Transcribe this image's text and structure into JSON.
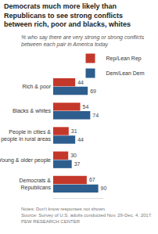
{
  "chart_data": {
    "type": "bar",
    "orientation": "horizontal",
    "title": "Democrats much more likely than Republicans to see strong conflicts between rich, poor and blacks, whites",
    "subtitle": "% who say there are very strong or strong conflicts between each pair in America today",
    "categories": [
      "Rich & poor",
      "Blacks & whites",
      "People in cities & people in rural areas",
      "Young & older people",
      "Democrats & Republicans"
    ],
    "series": [
      {
        "name": "Rep/Lean Rep",
        "color": "#c4382b",
        "values": [
          44,
          54,
          31,
          30,
          67
        ]
      },
      {
        "name": "Dem/Lean Dem",
        "color": "#2e5e8e",
        "values": [
          69,
          74,
          44,
          37,
          90
        ]
      }
    ],
    "xlim": [
      0,
      100
    ],
    "data_labels": true,
    "tick_labels": "y",
    "grid": false,
    "legend": "top",
    "annotations": [
      "Notes: Don't know responses not shown.",
      "Source: Survey of U.S. adults conducted Nov. 29-Dec. 4, 2017.",
      "PEW RESEARCH CENTER"
    ]
  }
}
